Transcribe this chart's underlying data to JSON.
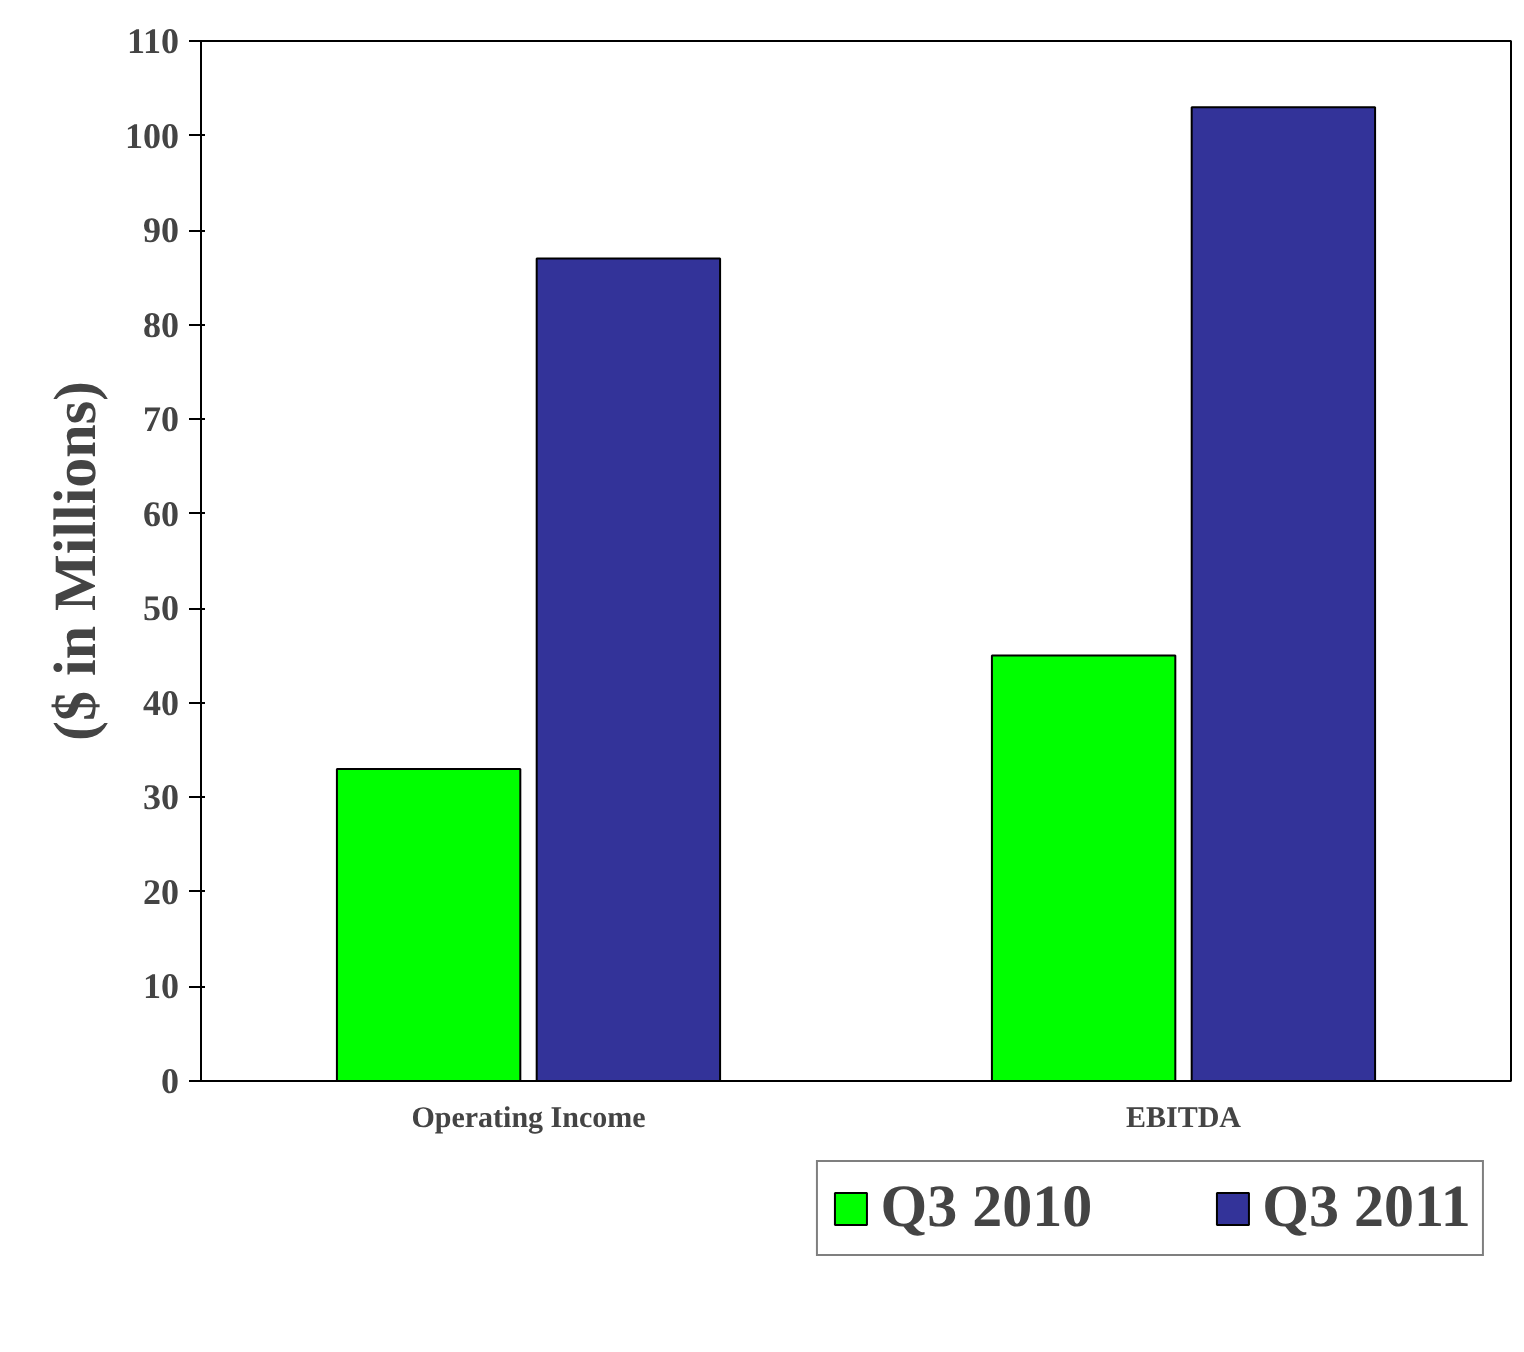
{
  "chart_data": {
    "type": "bar",
    "ylabel": "($ in Millions)",
    "categories": [
      "Operating Income",
      "EBITDA"
    ],
    "series": [
      {
        "name": "Q3 2010",
        "color": "#00ff00",
        "values": [
          33,
          45
        ]
      },
      {
        "name": "Q3 2011",
        "color": "#333399",
        "values": [
          87,
          103
        ]
      }
    ],
    "ylim": [
      0,
      110
    ],
    "yticks": [
      0,
      10,
      20,
      30,
      40,
      50,
      60,
      70,
      80,
      90,
      100,
      110
    ],
    "grid": false,
    "legend": "bottom"
  }
}
